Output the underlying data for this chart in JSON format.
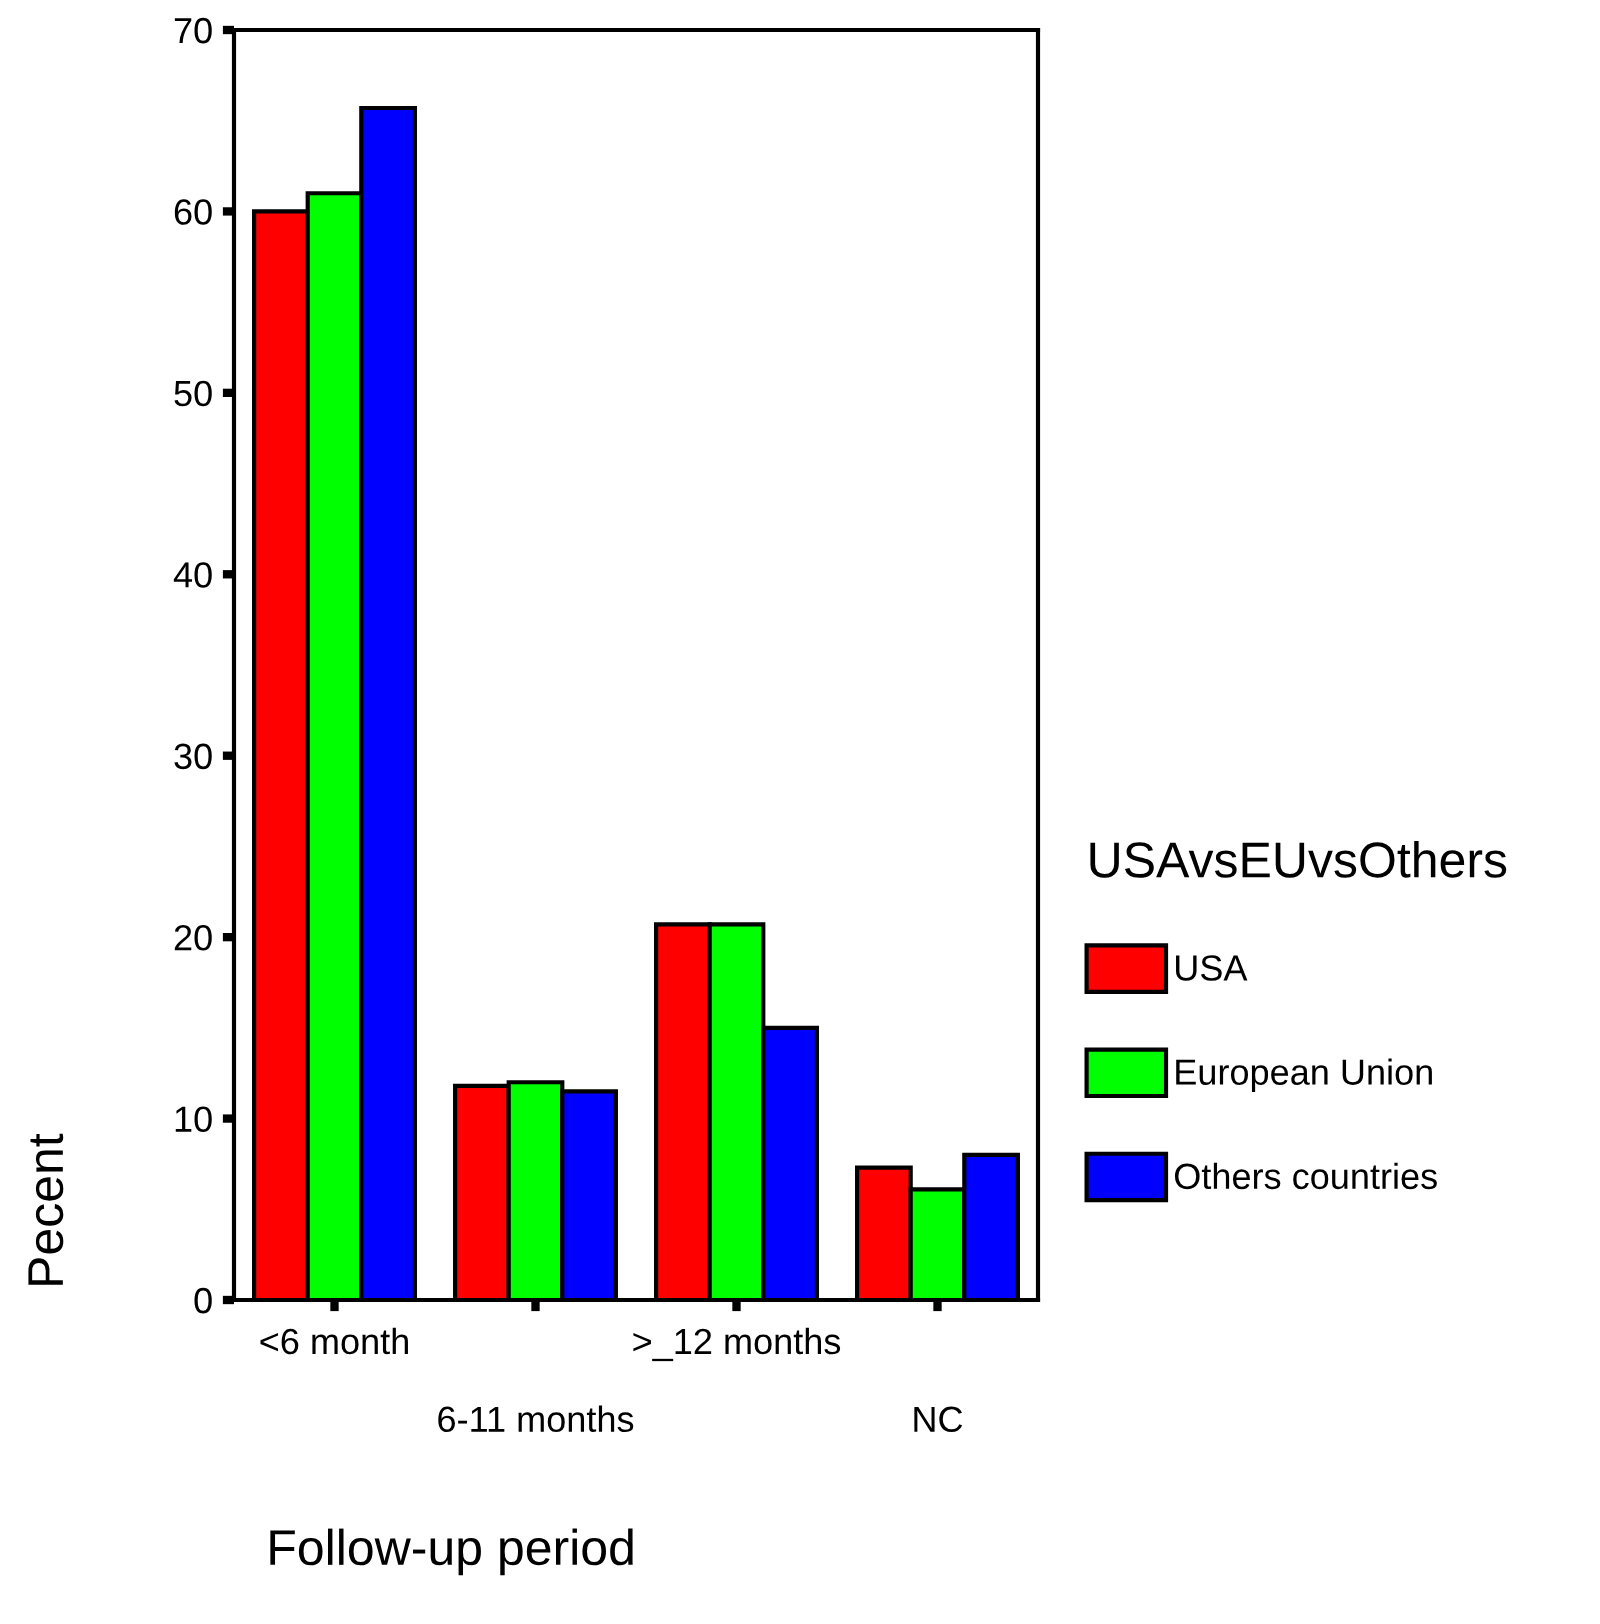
{
  "chart_data": {
    "type": "bar",
    "xlabel": "Follow-up period",
    "ylabel": "Pecent",
    "legend_title": "USAvsEUvsOthers",
    "categories": [
      "<6 month",
      "6-11 months",
      ">_12 months",
      "NC"
    ],
    "series": [
      {
        "name": "USA",
        "color": "#ff0000",
        "values": [
          60.0,
          11.8,
          20.7,
          7.3
        ]
      },
      {
        "name": "European Union",
        "color": "#00ff00",
        "values": [
          61.0,
          12.0,
          20.7,
          6.1
        ]
      },
      {
        "name": "Others countries",
        "color": "#0000ff",
        "values": [
          65.7,
          11.5,
          15.0,
          8.0
        ]
      }
    ],
    "ylim": [
      0,
      70
    ],
    "yticks": [
      0,
      10,
      20,
      30,
      40,
      50,
      60,
      70
    ],
    "grid": false,
    "legend": "right"
  }
}
